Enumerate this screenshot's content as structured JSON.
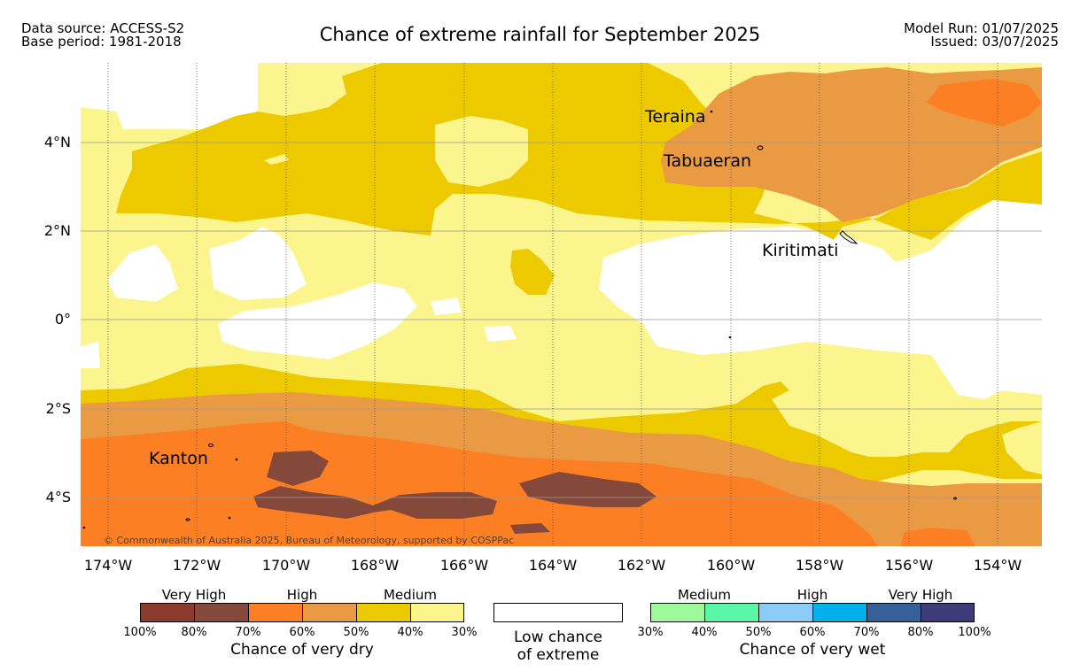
{
  "header": {
    "source_line1": "Data source: ACCESS-S2",
    "source_line2": "Base period: 1981-2018",
    "title": "Chance of extreme rainfall for September 2025",
    "model_run": "Model Run: 01/07/2025",
    "issued": "Issued: 03/07/2025"
  },
  "map": {
    "lat_labels": [
      "4°N",
      "2°N",
      "0°",
      "2°S",
      "4°S"
    ],
    "lon_labels": [
      "174°W",
      "172°W",
      "170°W",
      "168°W",
      "166°W",
      "164°W",
      "162°W",
      "160°W",
      "158°W",
      "156°W",
      "154°W"
    ],
    "places": [
      "Teraina",
      "Tabuaeran",
      "Kiritimati",
      "Kanton"
    ],
    "copyright": "© Commonwealth of Australia 2025, Bureau of Meteorology, supported by COSPPac",
    "colors": {
      "very_dry_100_80": "#8b3a2e",
      "very_dry_80_70": "#84493a",
      "dry_70_60": "#fd7f24",
      "dry_60_50": "#eb9a44",
      "dry_50_40": "#edc900",
      "dry_40_30": "#fcf48c",
      "low": "#ffffff"
    }
  },
  "legend": {
    "dry": {
      "levels": [
        "Very High",
        "High",
        "Medium"
      ],
      "colors": [
        "#8b3a2e",
        "#84493a",
        "#fd7f24",
        "#eb9a44",
        "#edc900",
        "#fcf48c"
      ],
      "ticks": [
        "100%",
        "80%",
        "70%",
        "60%",
        "50%",
        "40%",
        "30%"
      ],
      "caption": "Chance of very dry"
    },
    "low": {
      "line1": "Low chance",
      "line2": "of extreme"
    },
    "wet": {
      "levels": [
        "Medium",
        "High",
        "Very High"
      ],
      "colors": [
        "#9ef99a",
        "#5bf7a8",
        "#8acbf7",
        "#03b1ea",
        "#35609a",
        "#3f3a78"
      ],
      "ticks": [
        "30%",
        "40%",
        "50%",
        "60%",
        "70%",
        "80%",
        "100%"
      ],
      "caption": "Chance of very wet"
    }
  }
}
